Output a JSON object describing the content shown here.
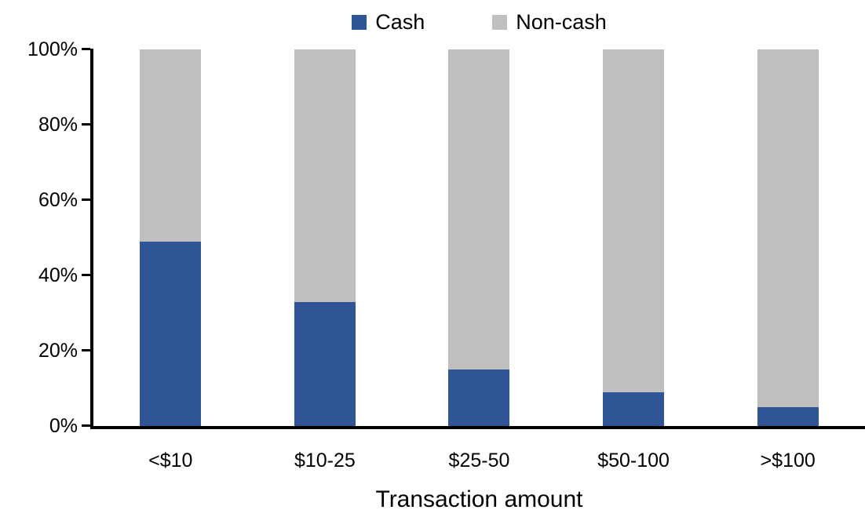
{
  "chart_data": {
    "type": "bar",
    "subtype": "100-percent-stacked-column",
    "title": "",
    "xlabel": "Transaction amount",
    "ylabel": "",
    "categories": [
      "<$10",
      "$10-25",
      "$25-50",
      "$50-100",
      ">$100"
    ],
    "series": [
      {
        "name": "Cash",
        "color": "#2F5597",
        "values": [
          49,
          33,
          15,
          9,
          5
        ]
      },
      {
        "name": "Non-cash",
        "color": "#BFBFBF",
        "values": [
          51,
          67,
          85,
          91,
          95
        ]
      }
    ],
    "y_ticks": [
      "0%",
      "20%",
      "40%",
      "60%",
      "80%",
      "100%"
    ],
    "ylim": [
      0,
      100
    ],
    "grid": "off",
    "legend_position": "top-center",
    "axis_color": "#000000",
    "background_color": "#FFFFFF"
  }
}
